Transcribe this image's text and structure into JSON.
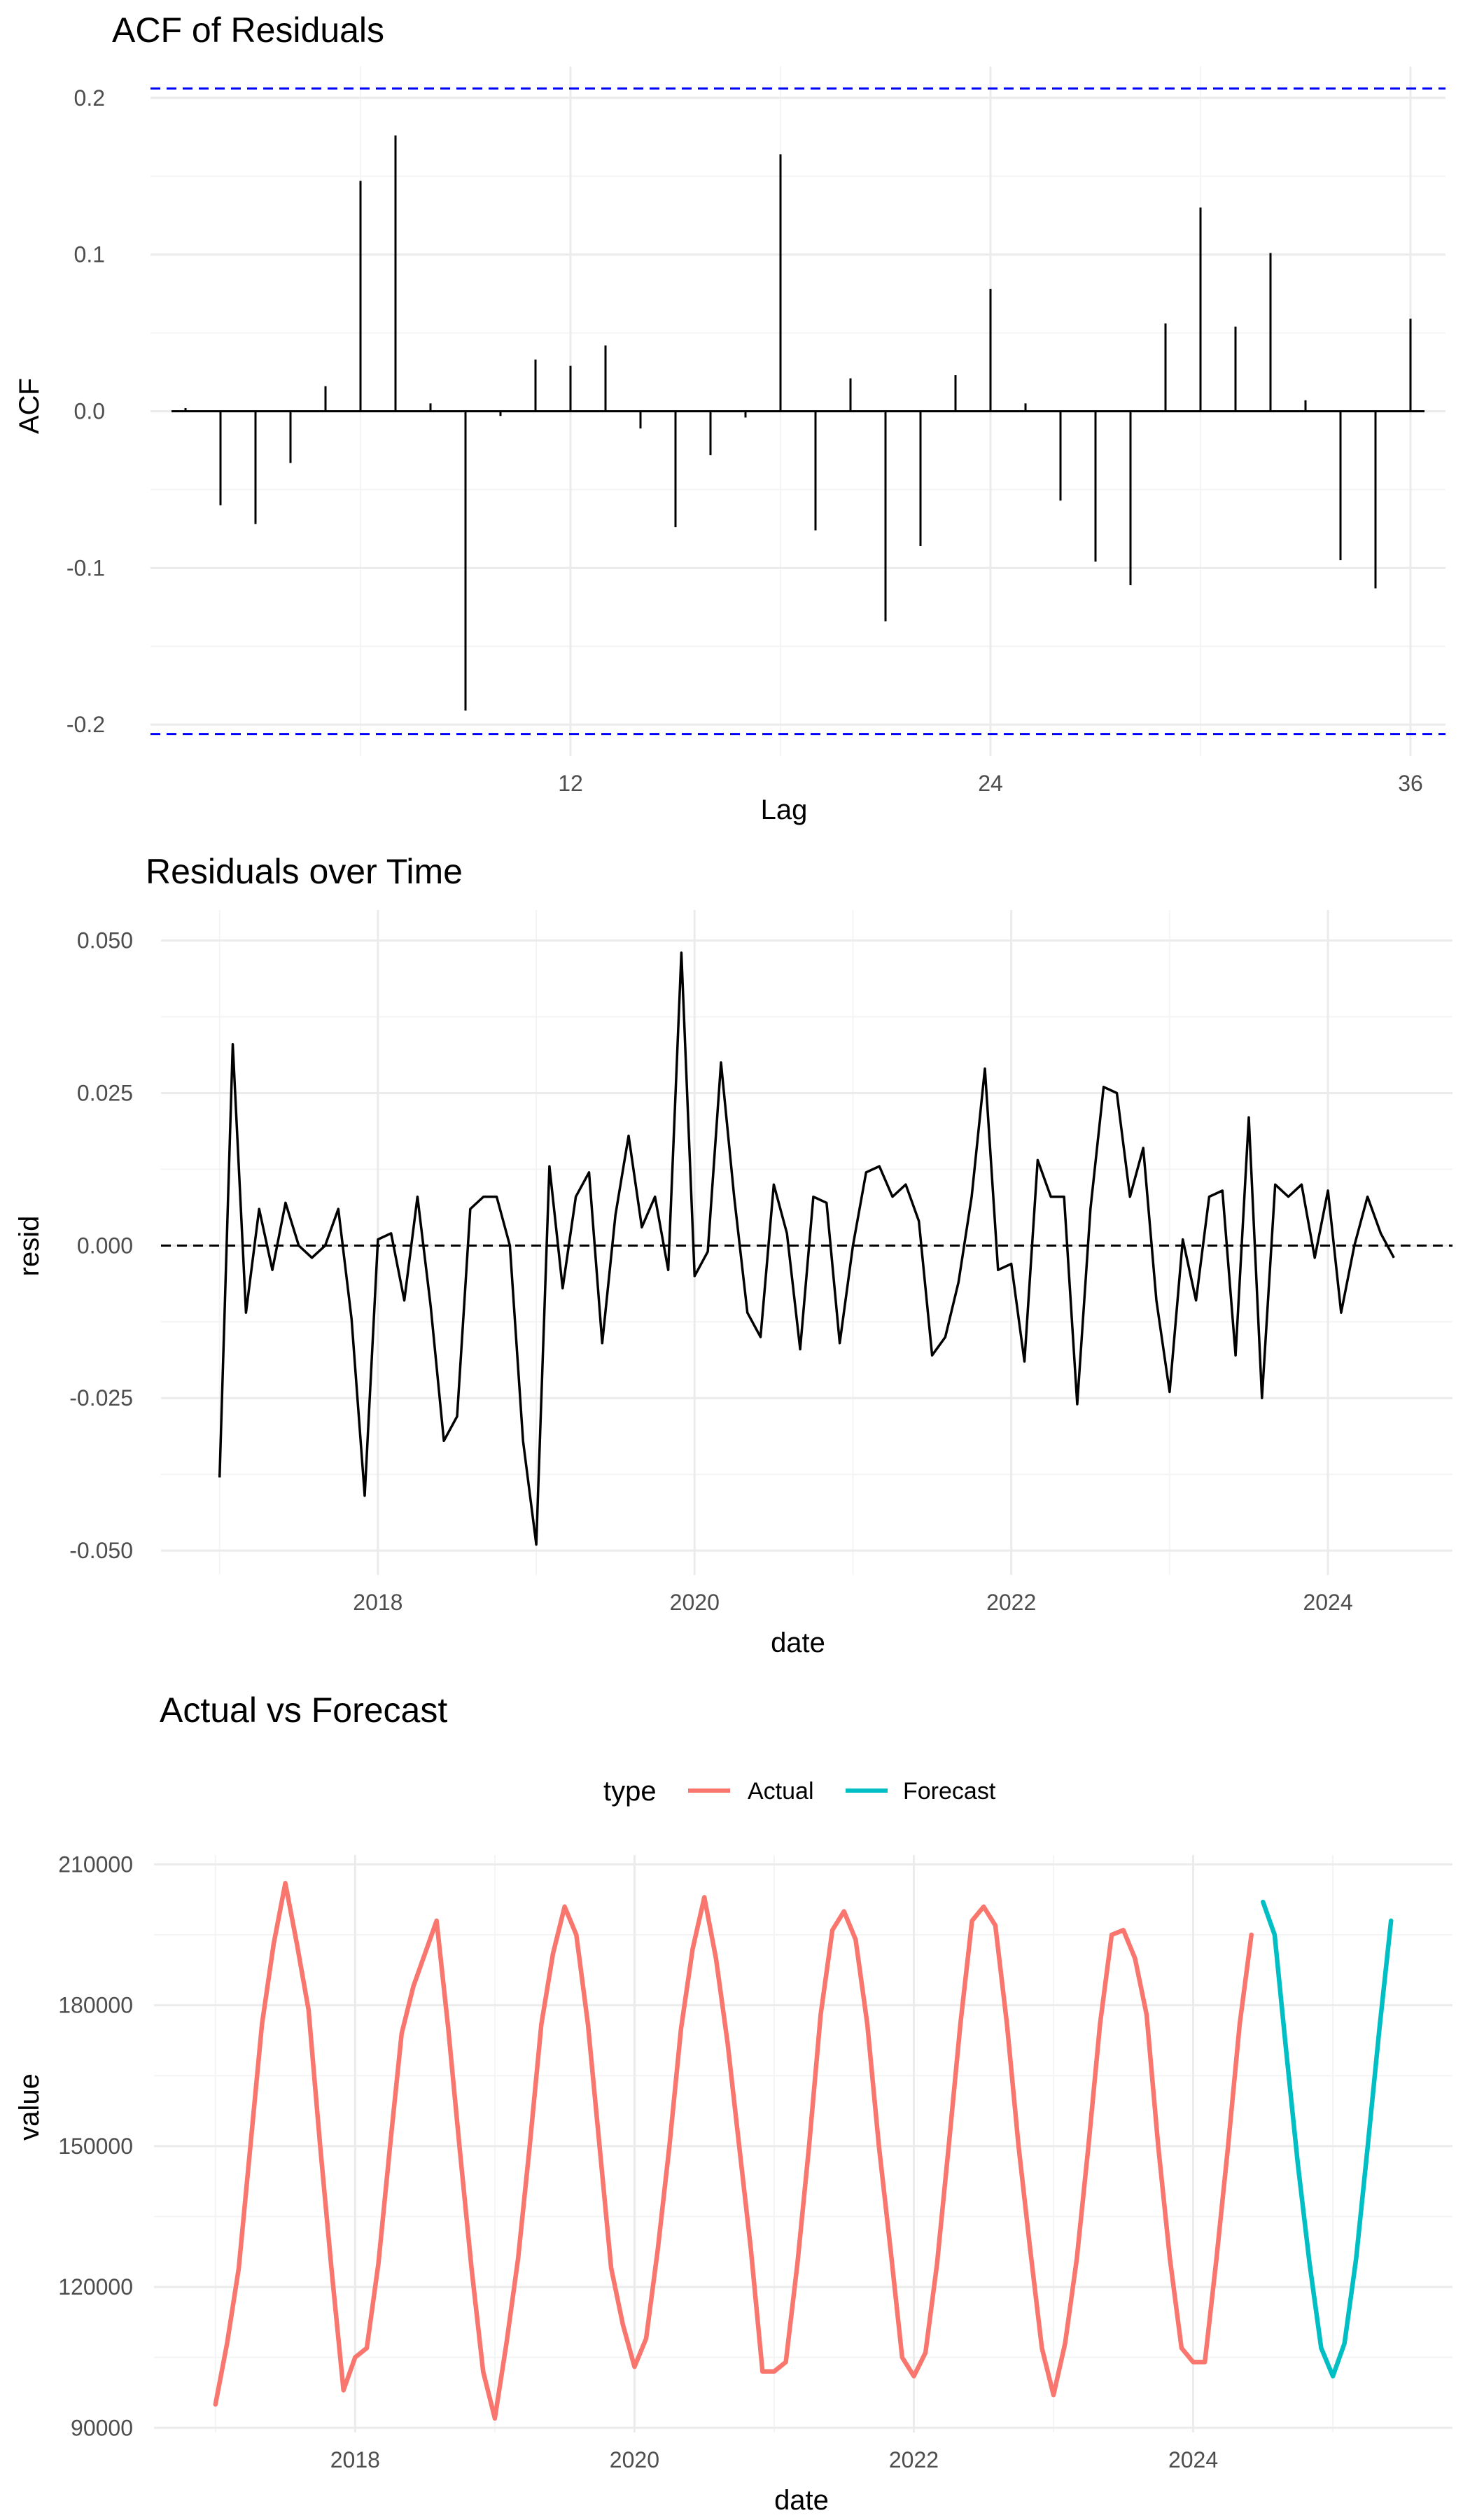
{
  "chart_data": [
    {
      "type": "bar",
      "title": "ACF of Residuals",
      "xlabel": "Lag",
      "ylabel": "ACF",
      "xlim": [
        0,
        37
      ],
      "ylim": [
        -0.22,
        0.22
      ],
      "x_ticks": [
        "12",
        "24",
        "36"
      ],
      "y_ticks": [
        "-0.2",
        "-0.1",
        "0.0",
        "0.1",
        "0.2"
      ],
      "grid": true,
      "confidence_bound": 0.206,
      "confidence_color": "#0000ff",
      "bar_color": "#000000",
      "lags": [
        1,
        2,
        3,
        4,
        5,
        6,
        7,
        8,
        9,
        10,
        11,
        12,
        13,
        14,
        15,
        16,
        17,
        18,
        19,
        20,
        21,
        22,
        23,
        24,
        25,
        26,
        27,
        28,
        29,
        30,
        31,
        32,
        33,
        34,
        35,
        36
      ],
      "values": [
        0.002,
        -0.06,
        -0.072,
        -0.033,
        0.016,
        0.147,
        0.176,
        0.005,
        -0.191,
        -0.003,
        0.033,
        0.029,
        0.042,
        -0.011,
        -0.074,
        -0.028,
        -0.004,
        0.164,
        -0.076,
        0.021,
        -0.134,
        -0.086,
        0.023,
        0.078,
        0.005,
        -0.057,
        -0.096,
        -0.111,
        0.056,
        0.13,
        0.054,
        0.101,
        0.007,
        -0.095,
        -0.113,
        0.059
      ]
    },
    {
      "type": "line",
      "title": "Residuals over Time",
      "xlabel": "date",
      "ylabel": "resid",
      "x_start": "2017-01",
      "x_step": "month",
      "x_ticks": [
        "2018",
        "2020",
        "2022",
        "2024"
      ],
      "y_ticks": [
        "-0.050",
        "-0.025",
        "0.000",
        "0.025",
        "0.050"
      ],
      "ylim": [
        -0.054,
        0.055
      ],
      "grid": true,
      "zero_reference_line": 0,
      "line_color": "#000000",
      "values": [
        -0.038,
        0.033,
        -0.011,
        0.006,
        -0.004,
        0.007,
        0.0,
        -0.002,
        0.0,
        0.006,
        -0.012,
        -0.041,
        0.001,
        0.002,
        -0.009,
        0.008,
        -0.01,
        -0.032,
        -0.028,
        0.006,
        0.008,
        0.008,
        0.0,
        -0.032,
        -0.049,
        0.013,
        -0.007,
        0.008,
        0.012,
        -0.016,
        0.005,
        0.018,
        0.003,
        0.008,
        -0.004,
        0.048,
        -0.005,
        -0.001,
        0.03,
        0.008,
        -0.011,
        -0.015,
        0.01,
        0.002,
        -0.017,
        0.008,
        0.007,
        -0.016,
        0.0,
        0.012,
        0.013,
        0.008,
        0.01,
        0.004,
        -0.018,
        -0.015,
        -0.006,
        0.008,
        0.029,
        -0.004,
        -0.003,
        -0.019,
        0.014,
        0.008,
        0.008,
        -0.026,
        0.006,
        0.026,
        0.025,
        0.008,
        0.016,
        -0.009,
        -0.024,
        0.001,
        -0.009,
        0.008,
        0.009,
        -0.018,
        0.021,
        -0.025,
        0.01,
        0.008,
        0.01,
        -0.002,
        0.009,
        -0.011,
        0.0,
        0.008,
        0.002,
        -0.002
      ]
    },
    {
      "type": "line",
      "title": "Actual vs Forecast",
      "xlabel": "date",
      "ylabel": "value",
      "x_ticks": [
        "2018",
        "2020",
        "2022",
        "2024"
      ],
      "y_ticks": [
        "90000",
        "120000",
        "150000",
        "180000",
        "210000"
      ],
      "ylim": [
        89000,
        212000
      ],
      "grid": true,
      "legend": {
        "title": "type",
        "position": "top"
      },
      "series": [
        {
          "name": "Actual",
          "color": "#f8766d",
          "x_start": "2017-01",
          "values": [
            95000,
            108000,
            124000,
            150000,
            176000,
            193000,
            206000,
            193000,
            179000,
            150000,
            123000,
            98000,
            105000,
            107000,
            125000,
            150000,
            174000,
            184000,
            191000,
            198000,
            175000,
            149000,
            124000,
            102000,
            92000,
            108000,
            126000,
            150000,
            176000,
            191000,
            201000,
            195000,
            176000,
            150000,
            124000,
            112000,
            103000,
            109000,
            128000,
            150000,
            175000,
            192000,
            203000,
            190000,
            172000,
            150000,
            128000,
            102000,
            102000,
            104000,
            125000,
            150000,
            178000,
            196000,
            200000,
            194000,
            176000,
            150000,
            128000,
            105000,
            101000,
            106000,
            125000,
            150000,
            176000,
            198000,
            201000,
            197000,
            176000,
            150000,
            128000,
            107000,
            97000,
            108000,
            126000,
            150000,
            176000,
            195000,
            196000,
            190000,
            178000,
            150000,
            126000,
            107000,
            104000,
            104000,
            126000,
            150000,
            176000,
            195000
          ]
        },
        {
          "name": "Forecast",
          "color": "#00bfc4",
          "x_start": "2024-07",
          "values": [
            202000,
            195000,
            170000,
            146000,
            125000,
            107000,
            101000,
            108000,
            126000,
            150000,
            175000,
            198000
          ]
        }
      ]
    }
  ]
}
